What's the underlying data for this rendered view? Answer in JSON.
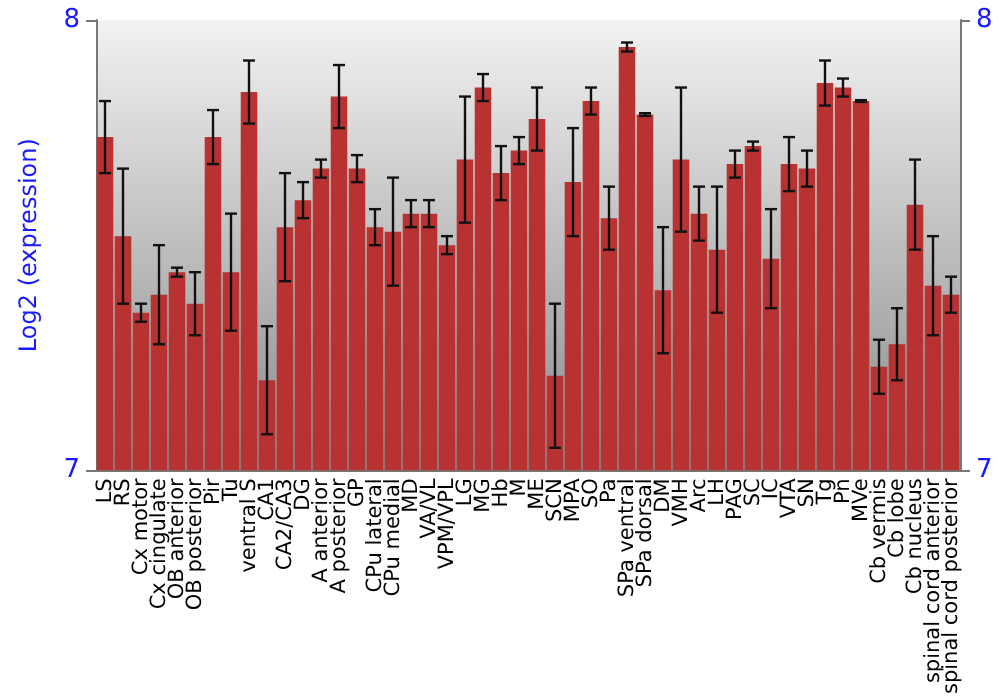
{
  "chart_data": {
    "type": "bar",
    "ylabel": "Log2 (expression)",
    "categories": [
      "LS",
      "RS",
      "Cx motor",
      "Cx cingulate",
      "OB anterior",
      "OB posterior",
      "Pir",
      "Tu",
      "ventral S",
      "CA1",
      "CA2/CA3",
      "DG",
      "A anterior",
      "A posterior",
      "GP",
      "CPu lateral",
      "CPu medial",
      "MD",
      "VA/VL",
      "VPM/VPL",
      "LG",
      "MG",
      "Hb",
      "M",
      "ME",
      "SCN",
      "MPA",
      "SO",
      "Pa",
      "SPa ventral",
      "SPa dorsal",
      "DM",
      "VMH",
      "Arc",
      "LH",
      "PAG",
      "SC",
      "IC",
      "VTA",
      "SN",
      "Tg",
      "Pn",
      "MVe",
      "Cb vermis",
      "Cb lobe",
      "Cb nucleus",
      "spinal cord anterior",
      "spinal cord posterior"
    ],
    "values": [
      7.74,
      7.52,
      7.35,
      7.39,
      7.44,
      7.37,
      7.74,
      7.44,
      7.84,
      7.2,
      7.54,
      7.6,
      7.67,
      7.83,
      7.67,
      7.54,
      7.53,
      7.57,
      7.57,
      7.5,
      7.69,
      7.85,
      7.66,
      7.71,
      7.78,
      7.21,
      7.64,
      7.82,
      7.56,
      7.94,
      7.79,
      7.4,
      7.69,
      7.57,
      7.49,
      7.68,
      7.72,
      7.47,
      7.68,
      7.67,
      7.86,
      7.85,
      7.82,
      7.23,
      7.28,
      7.59,
      7.41,
      7.39
    ],
    "errors": [
      0.08,
      0.15,
      0.02,
      0.11,
      0.01,
      0.07,
      0.06,
      0.13,
      0.07,
      0.12,
      0.12,
      0.04,
      0.02,
      0.07,
      0.03,
      0.04,
      0.12,
      0.03,
      0.03,
      0.02,
      0.14,
      0.03,
      0.06,
      0.03,
      0.07,
      0.16,
      0.12,
      0.03,
      0.07,
      0.01,
      0.003,
      0.14,
      0.16,
      0.06,
      0.14,
      0.03,
      0.01,
      0.11,
      0.06,
      0.04,
      0.05,
      0.02,
      0.002,
      0.06,
      0.08,
      0.1,
      0.11,
      0.04
    ],
    "color": "#b83232",
    "ylim": [
      7,
      8
    ],
    "yticks": [
      7,
      8
    ],
    "y2lim": [
      7,
      8
    ],
    "y2ticks": [
      7,
      8
    ],
    "grid": false
  }
}
